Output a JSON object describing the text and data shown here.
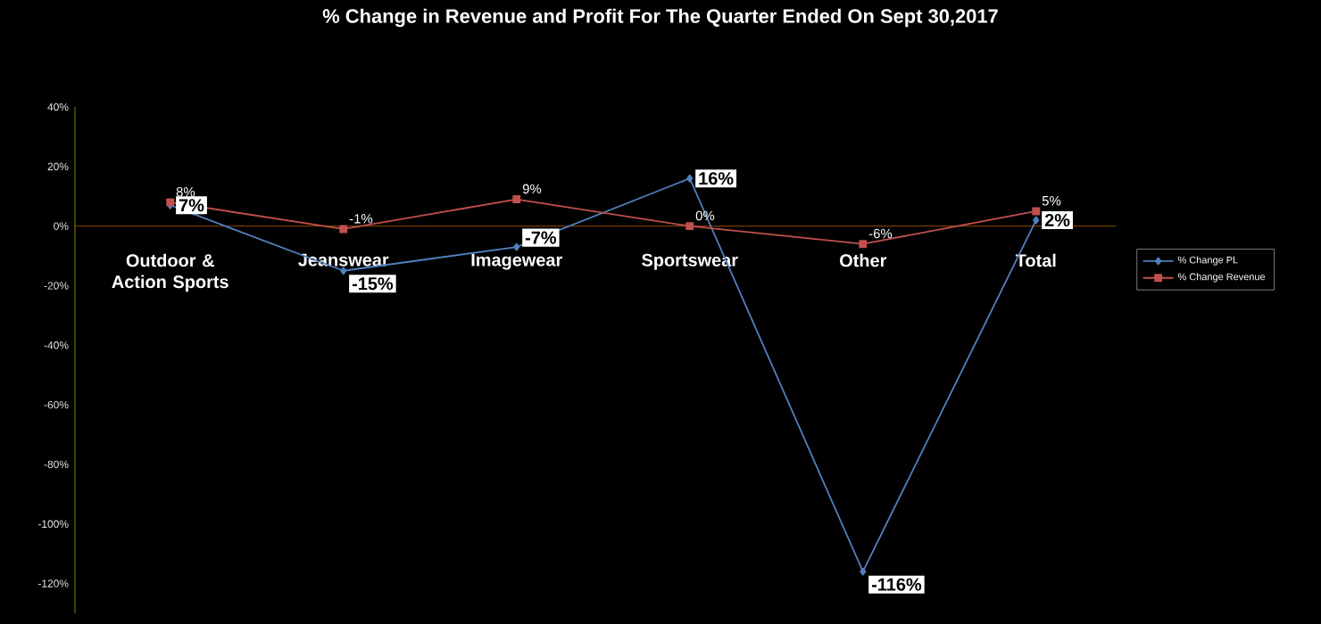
{
  "chart_data": {
    "type": "line",
    "title": "% Change in Revenue and Profit For The Quarter Ended On Sept 30,2017",
    "categories": [
      "Outdoor & Action Sports",
      "Jeanswear",
      "Imagewear",
      "Sportswear",
      "Other",
      "Total"
    ],
    "series": [
      {
        "name": "% Change PL",
        "color": "#4f81bd",
        "marker": "diamond",
        "values": [
          7,
          -15,
          -7,
          16,
          -116,
          2
        ],
        "value_labels": [
          "7%",
          "-15%",
          "-7%",
          "16%",
          "-116%",
          "2%"
        ]
      },
      {
        "name": "% Change Revenue",
        "color": "#c0504d",
        "marker": "square",
        "values": [
          8,
          -1,
          9,
          0,
          -6,
          5
        ],
        "value_labels": [
          "8%",
          "-1%",
          "9%",
          "0%",
          "-6%",
          "5%"
        ]
      }
    ],
    "ylim": [
      -130,
      40
    ],
    "yticks": [
      {
        "value": 40,
        "label": "40%"
      },
      {
        "value": 20,
        "label": "20%"
      },
      {
        "value": 0,
        "label": "0%"
      },
      {
        "value": -20,
        "label": "-20%"
      },
      {
        "value": -40,
        "label": "-40%"
      },
      {
        "value": -60,
        "label": "-60%"
      },
      {
        "value": -80,
        "label": "-80%"
      },
      {
        "value": -100,
        "label": "-100%"
      },
      {
        "value": -120,
        "label": "-120%"
      }
    ],
    "legend": "right",
    "grid": false
  }
}
